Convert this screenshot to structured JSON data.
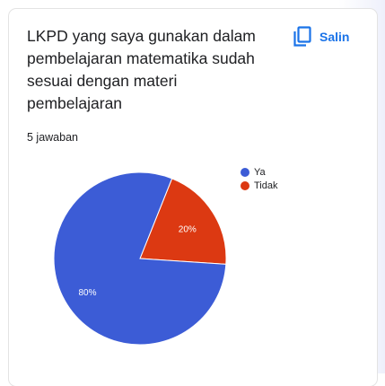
{
  "question": {
    "title": "LKPD yang saya gunakan dalam pembelajaran matematika sudah sesuai dengan materi pembelajaran",
    "response_count": "5 jawaban",
    "copy_label": "Salin",
    "copy_icon": "copy-icon"
  },
  "colors": {
    "accent": "#1a73e8",
    "ya": "#3c5cd6",
    "tidak": "#dc3912"
  },
  "chart_data": {
    "type": "pie",
    "slices": [
      {
        "label": "Ya",
        "value": 80,
        "display": "80%",
        "color": "#3c5cd6"
      },
      {
        "label": "Tidak",
        "value": 20,
        "display": "20%",
        "color": "#dc3912"
      }
    ],
    "legend_position": "right"
  }
}
